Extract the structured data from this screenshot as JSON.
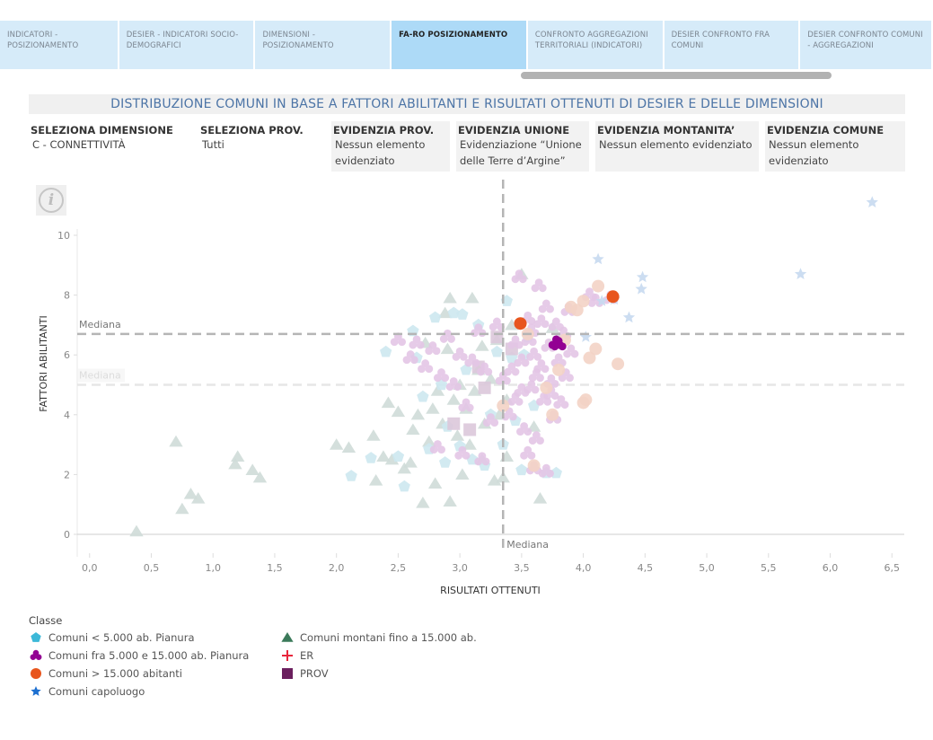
{
  "tabs": [
    {
      "label": "INDICATORI - POSIZIONAMENTO",
      "active": false
    },
    {
      "label": "DESIER - INDICATORI SOCIO-DEMOGRAFICI",
      "active": false
    },
    {
      "label": "DIMENSIONI - POSIZIONAMENTO",
      "active": false
    },
    {
      "label": "FA-RO POSIZIONAMENTO",
      "active": true
    },
    {
      "label": "CONFRONTO AGGREGAZIONI TERRITORIALI (INDICATORI)",
      "active": false
    },
    {
      "label": "DESIER CONFRONTO FRA COMUNI",
      "active": false
    },
    {
      "label": "DESIER CONFRONTO COMUNI - AGGREGAZIONI",
      "active": false
    }
  ],
  "title": "DISTRIBUZIONE COMUNI IN BASE A FATTORI ABILITANTI E RISULTATI OTTENUTI DI DESIER E DELLE DIMENSIONI",
  "filters": [
    {
      "label": "SELEZIONA DIMENSIONE",
      "value": "C - CONNETTIVITÀ"
    },
    {
      "label": "SELEZIONA PROV.",
      "value": "Tutti"
    },
    {
      "label": "EVIDENZIA PROV.",
      "value": "Nessun elemento evidenziato"
    },
    {
      "label": "EVIDENZIA UNIONE",
      "value": "Evidenziazione “Unione delle Terre d’Argine”"
    },
    {
      "label": "EVIDENZIA MONTANITA’",
      "value": "Nessun elemento evidenziato"
    },
    {
      "label": "EVIDENZIA COMUNE",
      "value": "Nessun elemento evidenziato"
    }
  ],
  "info_icon": "info-icon",
  "legend": {
    "title": "Classe",
    "items": [
      {
        "label": "Comuni < 5.000 ab. Pianura",
        "shape": "pentagon",
        "color": "#3cb8d8"
      },
      {
        "label": "Comuni fra 5.000 e 15.000 ab. Pianura",
        "shape": "trefoil",
        "color": "#930093"
      },
      {
        "label": "Comuni > 15.000 abitanti",
        "shape": "circle",
        "color": "#e8561e"
      },
      {
        "label": "Comuni capoluogo",
        "shape": "star",
        "color": "#1d6fd0"
      },
      {
        "label": "Comuni montani fino a 15.000 ab.",
        "shape": "triangle",
        "color": "#3b7a5a"
      },
      {
        "label": "ER",
        "shape": "cross",
        "color": "#e8263c"
      },
      {
        "label": "PROV",
        "shape": "square",
        "color": "#6b1f5e"
      }
    ]
  },
  "chart_data": {
    "type": "scatter",
    "title": "DISTRIBUZIONE COMUNI IN BASE A FATTORI ABILITANTI E RISULTATI OTTENUTI DI DESIER E DELLE DIMENSIONI",
    "xlabel": "RISULTATI OTTENUTI",
    "ylabel": "FATTORI ABILITANTI",
    "xlim": [
      -0.1,
      6.6
    ],
    "ylim": [
      -0.3,
      10.2
    ],
    "xticks": [
      "0,0",
      "0,5",
      "1,0",
      "1,5",
      "2,0",
      "2,5",
      "3,0",
      "3,5",
      "4,0",
      "4,5",
      "5,0",
      "5,5",
      "6,0",
      "6,5"
    ],
    "xtick_values": [
      0,
      0.5,
      1,
      1.5,
      2,
      2.5,
      3,
      3.5,
      4,
      4.5,
      5,
      5.5,
      6,
      6.5
    ],
    "yticks": [
      "0",
      "2",
      "4",
      "6",
      "8",
      "10"
    ],
    "ytick_values": [
      0,
      2,
      4,
      6,
      8,
      10
    ],
    "reference_lines": [
      {
        "axis": "x",
        "value": 3.35,
        "label": "Mediana",
        "style": "dark"
      },
      {
        "axis": "y",
        "value": 6.7,
        "label": "Mediana",
        "style": "dark"
      },
      {
        "axis": "y",
        "value": 5.0,
        "label": "Mediana",
        "style": "light"
      }
    ],
    "grid": false,
    "legend_position": "bottom-left",
    "series": [
      {
        "name": "Comuni montani fino a 15.000 ab.",
        "shape": "triangle",
        "color": "#cfdcd8",
        "highlighted": false,
        "points": [
          [
            0.38,
            0.1
          ],
          [
            0.7,
            3.1
          ],
          [
            0.75,
            0.85
          ],
          [
            0.82,
            1.35
          ],
          [
            0.88,
            1.2
          ],
          [
            1.18,
            2.35
          ],
          [
            1.2,
            2.6
          ],
          [
            1.32,
            2.15
          ],
          [
            1.38,
            1.9
          ],
          [
            2.0,
            3.0
          ],
          [
            2.1,
            2.9
          ],
          [
            2.3,
            3.3
          ],
          [
            2.32,
            1.8
          ],
          [
            2.38,
            2.6
          ],
          [
            2.42,
            4.4
          ],
          [
            2.45,
            2.5
          ],
          [
            2.5,
            4.1
          ],
          [
            2.55,
            2.2
          ],
          [
            2.6,
            2.4
          ],
          [
            2.62,
            3.5
          ],
          [
            2.66,
            4.0
          ],
          [
            2.7,
            1.05
          ],
          [
            2.72,
            6.4
          ],
          [
            2.75,
            3.1
          ],
          [
            2.78,
            4.2
          ],
          [
            2.8,
            1.7
          ],
          [
            2.82,
            4.8
          ],
          [
            2.86,
            3.7
          ],
          [
            2.88,
            7.4
          ],
          [
            2.9,
            6.2
          ],
          [
            2.92,
            1.1
          ],
          [
            2.95,
            4.5
          ],
          [
            2.98,
            3.3
          ],
          [
            3.0,
            5.0
          ],
          [
            3.02,
            2.0
          ],
          [
            3.05,
            4.2
          ],
          [
            3.08,
            3.0
          ],
          [
            3.1,
            7.9
          ],
          [
            3.12,
            4.8
          ],
          [
            3.15,
            5.5
          ],
          [
            3.18,
            2.5
          ],
          [
            3.2,
            3.7
          ],
          [
            3.25,
            5.2
          ],
          [
            3.28,
            1.8
          ],
          [
            3.3,
            6.5
          ],
          [
            3.32,
            4.0
          ],
          [
            3.35,
            1.9
          ],
          [
            3.38,
            2.6
          ],
          [
            3.42,
            7.0
          ],
          [
            3.5,
            8.7
          ],
          [
            3.6,
            3.6
          ],
          [
            3.75,
            6.9
          ],
          [
            3.65,
            1.2
          ],
          [
            2.92,
            7.9
          ],
          [
            3.38,
            4.5
          ],
          [
            3.18,
            6.3
          ]
        ]
      },
      {
        "name": "Comuni < 5.000 ab. Pianura",
        "shape": "pentagon",
        "color": "#cde8f0",
        "highlighted": false,
        "points": [
          [
            2.12,
            1.95
          ],
          [
            2.4,
            6.1
          ],
          [
            2.5,
            2.6
          ],
          [
            2.55,
            1.6
          ],
          [
            2.62,
            6.8
          ],
          [
            2.65,
            5.9
          ],
          [
            2.7,
            4.6
          ],
          [
            2.75,
            2.85
          ],
          [
            2.8,
            7.25
          ],
          [
            2.85,
            5.0
          ],
          [
            2.88,
            2.4
          ],
          [
            2.9,
            3.6
          ],
          [
            2.95,
            7.4
          ],
          [
            3.0,
            2.95
          ],
          [
            3.02,
            7.35
          ],
          [
            3.05,
            5.5
          ],
          [
            3.1,
            2.5
          ],
          [
            3.15,
            7.0
          ],
          [
            3.2,
            2.3
          ],
          [
            3.25,
            4.0
          ],
          [
            3.3,
            6.1
          ],
          [
            3.35,
            3.0
          ],
          [
            3.38,
            7.8
          ],
          [
            3.42,
            5.9
          ],
          [
            3.45,
            3.8
          ],
          [
            3.5,
            2.15
          ],
          [
            3.55,
            6.6
          ],
          [
            3.6,
            4.3
          ],
          [
            3.7,
            2.05
          ],
          [
            3.78,
            2.05
          ],
          [
            3.52,
            6.0
          ],
          [
            2.28,
            2.55
          ]
        ]
      },
      {
        "name": "Comuni fra 5.000 e 15.000 ab. Pianura",
        "shape": "trefoil",
        "color": "#e4c6e6",
        "highlighted": false,
        "points": [
          [
            2.5,
            6.5
          ],
          [
            2.6,
            5.9
          ],
          [
            2.65,
            6.4
          ],
          [
            2.72,
            5.6
          ],
          [
            2.78,
            6.2
          ],
          [
            2.82,
            2.9
          ],
          [
            2.85,
            5.3
          ],
          [
            2.9,
            6.6
          ],
          [
            2.95,
            5.0
          ],
          [
            3.0,
            6.0
          ],
          [
            3.02,
            2.7
          ],
          [
            3.05,
            4.3
          ],
          [
            3.1,
            5.8
          ],
          [
            3.15,
            6.8
          ],
          [
            3.18,
            2.5
          ],
          [
            3.2,
            5.5
          ],
          [
            3.25,
            3.8
          ],
          [
            3.3,
            7.0
          ],
          [
            3.35,
            5.2
          ],
          [
            3.4,
            4.0
          ],
          [
            3.45,
            6.4
          ],
          [
            3.48,
            8.6
          ],
          [
            3.5,
            5.8
          ],
          [
            3.52,
            3.5
          ],
          [
            3.55,
            7.2
          ],
          [
            3.58,
            4.9
          ],
          [
            3.6,
            6.0
          ],
          [
            3.62,
            3.2
          ],
          [
            3.64,
            8.3
          ],
          [
            3.66,
            5.6
          ],
          [
            3.68,
            4.5
          ],
          [
            3.7,
            7.6
          ],
          [
            3.72,
            6.3
          ],
          [
            3.74,
            5.1
          ],
          [
            3.76,
            3.9
          ],
          [
            3.78,
            7.0
          ],
          [
            3.8,
            5.8
          ],
          [
            3.82,
            4.4
          ],
          [
            3.84,
            6.7
          ],
          [
            3.86,
            5.3
          ],
          [
            3.88,
            7.5
          ],
          [
            3.55,
            2.7
          ],
          [
            3.6,
            2.2
          ],
          [
            3.7,
            2.1
          ],
          [
            3.5,
            4.8
          ],
          [
            3.42,
            5.5
          ],
          [
            3.56,
            6.5
          ],
          [
            3.66,
            7.1
          ],
          [
            3.74,
            4.7
          ],
          [
            3.9,
            6.1
          ],
          [
            4.05,
            8.0
          ],
          [
            4.1,
            7.8
          ],
          [
            4.22,
            7.9
          ],
          [
            3.45,
            4.5
          ],
          [
            3.62,
            5.3
          ],
          [
            3.58,
            6.8
          ]
        ]
      },
      {
        "name": "Comuni > 15.000 abitanti",
        "shape": "circle",
        "color": "#f3d3c5",
        "highlighted": false,
        "points": [
          [
            3.35,
            4.3
          ],
          [
            3.55,
            6.7
          ],
          [
            3.6,
            2.3
          ],
          [
            3.75,
            4.0
          ],
          [
            3.85,
            6.5
          ],
          [
            3.9,
            7.6
          ],
          [
            3.95,
            7.5
          ],
          [
            4.0,
            7.8
          ],
          [
            4.05,
            5.9
          ],
          [
            4.1,
            6.2
          ],
          [
            4.12,
            8.3
          ],
          [
            4.0,
            4.4
          ],
          [
            4.02,
            4.5
          ],
          [
            4.28,
            5.7
          ],
          [
            3.7,
            4.9
          ],
          [
            3.8,
            5.5
          ]
        ]
      },
      {
        "name": "Comuni > 15.000 abitanti (evidenziati)",
        "shape": "circle",
        "color": "#e8561e",
        "highlighted": true,
        "points": [
          [
            3.49,
            7.05
          ],
          [
            4.24,
            7.95
          ]
        ]
      },
      {
        "name": "Comuni fra 5.000 e 15.000 ab. Pianura (evidenziati)",
        "shape": "trefoil",
        "color": "#930093",
        "highlighted": true,
        "points": [
          [
            3.78,
            6.4
          ],
          [
            3.8,
            6.35
          ]
        ]
      },
      {
        "name": "Comuni capoluogo",
        "shape": "star",
        "color": "#c6d9ef",
        "highlighted": false,
        "points": [
          [
            4.12,
            9.2
          ],
          [
            4.15,
            7.8
          ],
          [
            4.25,
            7.85
          ],
          [
            4.37,
            7.25
          ],
          [
            4.47,
            8.2
          ],
          [
            4.48,
            8.6
          ],
          [
            4.02,
            6.6
          ],
          [
            5.76,
            8.7
          ],
          [
            6.34,
            11.1
          ]
        ]
      },
      {
        "name": "PROV",
        "shape": "square",
        "color": "#dcc8da",
        "highlighted": false,
        "points": [
          [
            3.15,
            5.6
          ],
          [
            3.2,
            4.9
          ],
          [
            3.3,
            6.6
          ],
          [
            3.08,
            3.5
          ],
          [
            2.95,
            3.7
          ],
          [
            3.42,
            6.2
          ]
        ]
      }
    ]
  }
}
